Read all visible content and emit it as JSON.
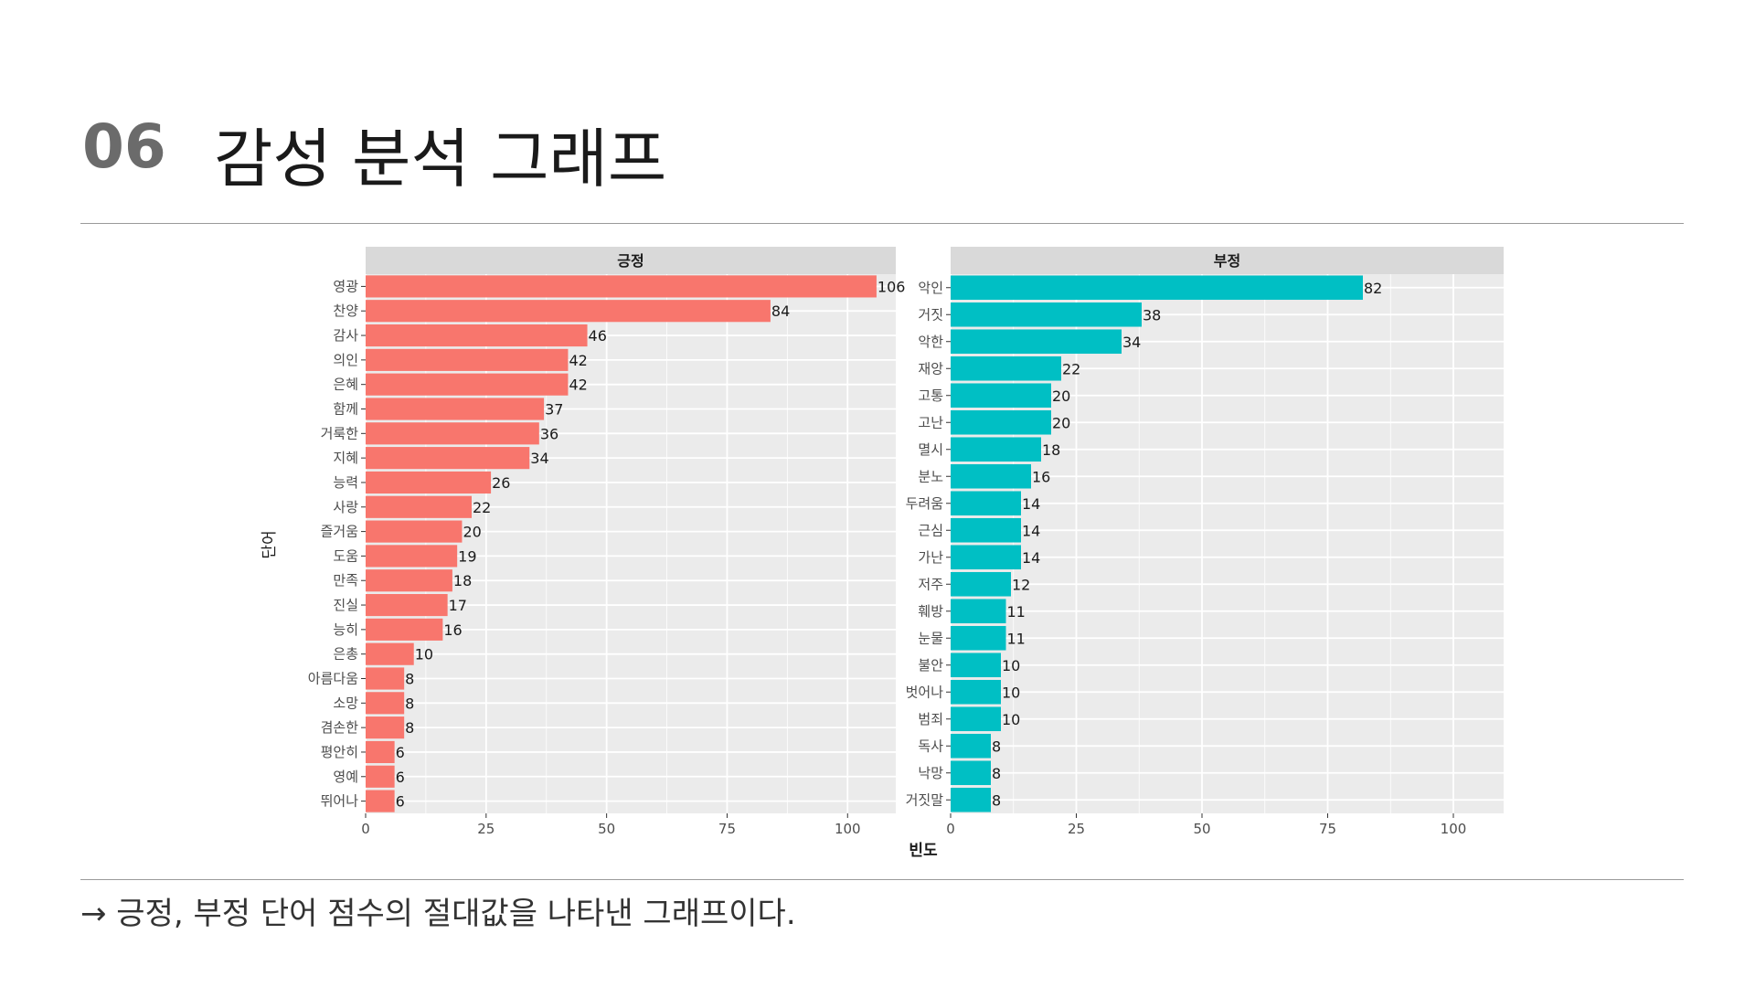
{
  "slide": {
    "number": "06",
    "title": "감성 분석 그래프",
    "caption": "→ 긍정, 부정 단어 점수의 절대값을 나타낸 그래프이다."
  },
  "colors": {
    "positive": "#F8766D",
    "negative": "#00BFC4",
    "panel_bg": "#EBEBEB",
    "strip_bg": "#D9D9D9"
  },
  "chart_data": {
    "type": "bar",
    "orientation": "horizontal",
    "xlabel": "빈도",
    "ylabel": "단어",
    "xlim": [
      0,
      110
    ],
    "xticks": [
      0,
      25,
      50,
      75,
      100
    ],
    "grid": true,
    "legend": "none",
    "panels": [
      {
        "name": "긍정",
        "categories": [
          "영광",
          "찬양",
          "감사",
          "의인",
          "은혜",
          "함께",
          "거룩한",
          "지혜",
          "능력",
          "사랑",
          "즐거움",
          "도움",
          "만족",
          "진실",
          "능히",
          "은총",
          "아름다움",
          "소망",
          "겸손한",
          "평안히",
          "영예",
          "뛰어나"
        ],
        "values": [
          106,
          84,
          46,
          42,
          42,
          37,
          36,
          34,
          26,
          22,
          20,
          19,
          18,
          17,
          16,
          10,
          8,
          8,
          8,
          6,
          6,
          6
        ]
      },
      {
        "name": "부정",
        "categories": [
          "악인",
          "거짓",
          "악한",
          "재앙",
          "고통",
          "고난",
          "멸시",
          "분노",
          "두려움",
          "근심",
          "가난",
          "저주",
          "훼방",
          "눈물",
          "불안",
          "벗어나",
          "범죄",
          "독사",
          "낙망",
          "거짓말"
        ],
        "values": [
          82,
          38,
          34,
          22,
          20,
          20,
          18,
          16,
          14,
          14,
          14,
          12,
          11,
          11,
          10,
          10,
          10,
          8,
          8,
          8
        ]
      }
    ]
  }
}
